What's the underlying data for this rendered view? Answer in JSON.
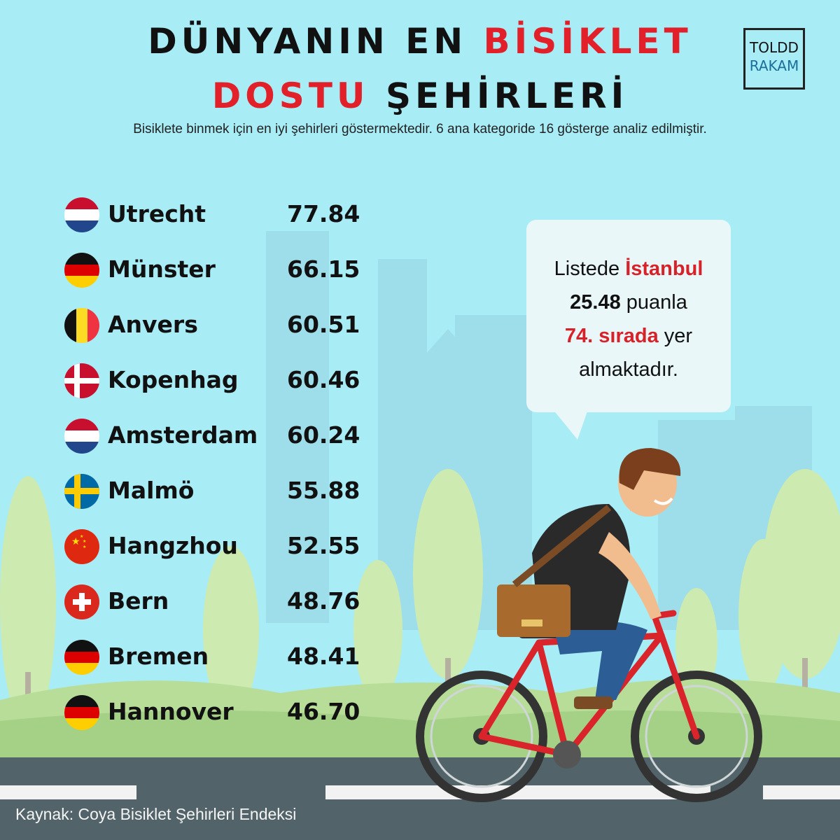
{
  "title": {
    "line1_black": "DÜNYANIN EN",
    "line1_red": "BİSİKLET",
    "line2_red": "DOSTU",
    "line2_black": "ŞEHİRLERİ"
  },
  "subtitle": "Bisiklete binmek için en iyi şehirleri göstermektedir. 6 ana kategoride 16 gösterge analiz edilmiştir.",
  "logo": {
    "line1": "TOLDD",
    "line2": "RAKAM"
  },
  "cities": [
    {
      "name": "Utrecht",
      "score": "77.84",
      "flag": "netherlands-flag"
    },
    {
      "name": "Münster",
      "score": "66.15",
      "flag": "germany-flag"
    },
    {
      "name": "Anvers",
      "score": "60.51",
      "flag": "belgium-flag"
    },
    {
      "name": "Kopenhag",
      "score": "60.46",
      "flag": "denmark-flag"
    },
    {
      "name": "Amsterdam",
      "score": "60.24",
      "flag": "netherlands-flag"
    },
    {
      "name": "Malmö",
      "score": "55.88",
      "flag": "sweden-flag"
    },
    {
      "name": "Hangzhou",
      "score": "52.55",
      "flag": "china-flag"
    },
    {
      "name": "Bern",
      "score": "48.76",
      "flag": "switzerland-flag"
    },
    {
      "name": "Bremen",
      "score": "48.41",
      "flag": "germany-flag"
    },
    {
      "name": "Hannover",
      "score": "46.70",
      "flag": "germany-flag"
    }
  ],
  "callout": {
    "part1": "Listede ",
    "city": "İstanbul",
    "score": "25.48",
    "part2": " puanla",
    "rank": "74. sırada",
    "part3": " yer",
    "part4": "almaktadır."
  },
  "source": "Kaynak: Coya Bisiklet Şehirleri Endeksi",
  "colors": {
    "accent": "#e2202a",
    "sky": "#a8ecf6",
    "road": "#52646a",
    "logo_blue": "#1a6f9a"
  }
}
